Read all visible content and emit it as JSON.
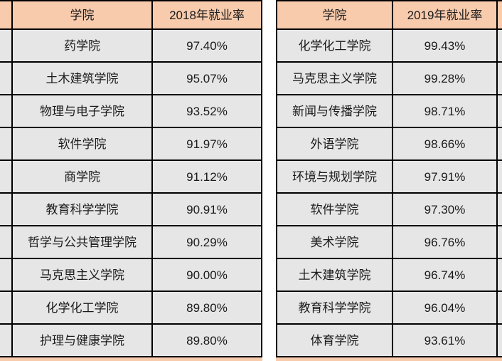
{
  "styles": {
    "header_bg": "#F8CBAD",
    "cell_bg": "#E7E6E6",
    "border_color": "#000000",
    "text_color": "#1A1A1A",
    "page_bg": "#FFFFFF"
  },
  "tables": [
    {
      "id": "employment-2018",
      "headers": {
        "college": "学院",
        "rate": "2018年就业率"
      },
      "rows": [
        {
          "college": "药学院",
          "rate": "97.40%"
        },
        {
          "college": "土木建筑学院",
          "rate": "95.07%"
        },
        {
          "college": "物理与电子学院",
          "rate": "93.52%"
        },
        {
          "college": "软件学院",
          "rate": "91.97%"
        },
        {
          "college": "商学院",
          "rate": "91.12%"
        },
        {
          "college": "教育科学学院",
          "rate": "90.91%"
        },
        {
          "college": "哲学与公共管理学院",
          "rate": "90.29%"
        },
        {
          "college": "马克思主义学院",
          "rate": "90.00%"
        },
        {
          "college": "化学化工学院",
          "rate": "89.80%"
        },
        {
          "college": "护理与健康学院",
          "rate": "89.80%"
        }
      ]
    },
    {
      "id": "employment-2019",
      "headers": {
        "college": "学院",
        "rate": "2019年就业率"
      },
      "rows": [
        {
          "college": "化学化工学院",
          "rate": "99.43%"
        },
        {
          "college": "马克思主义学院",
          "rate": "99.28%"
        },
        {
          "college": "新闻与传播学院",
          "rate": "98.71%"
        },
        {
          "college": "外语学院",
          "rate": "98.66%"
        },
        {
          "college": "环境与规划学院",
          "rate": "97.91%"
        },
        {
          "college": "软件学院",
          "rate": "97.30%"
        },
        {
          "college": "美术学院",
          "rate": "96.76%"
        },
        {
          "college": "土木建筑学院",
          "rate": "96.74%"
        },
        {
          "college": "教育科学学院",
          "rate": "96.04%"
        },
        {
          "college": "体育学院",
          "rate": "93.61%"
        }
      ]
    }
  ]
}
